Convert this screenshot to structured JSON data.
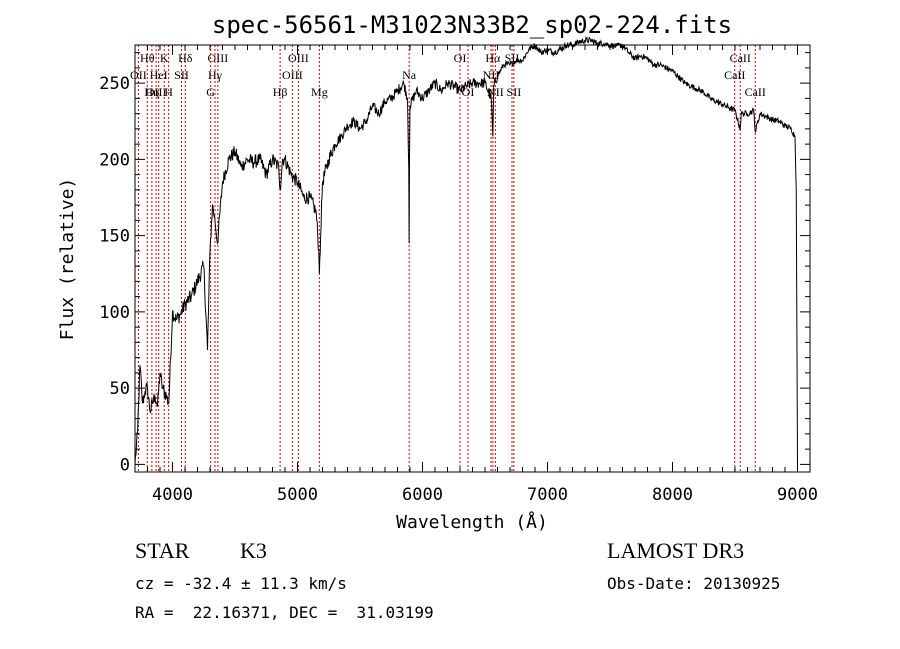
{
  "chart_data": {
    "type": "line",
    "title": "spec-56561-M31023N33B2_sp02-224.fits",
    "xlabel": "Wavelength (Å)",
    "ylabel": "Flux (relative)",
    "xlim": [
      3700,
      9100
    ],
    "ylim": [
      -5,
      275
    ],
    "xticks": [
      4000,
      5000,
      6000,
      7000,
      8000,
      9000
    ],
    "yticks": [
      0,
      50,
      100,
      150,
      200,
      250
    ],
    "grid": false,
    "series": [
      {
        "name": "flux",
        "x": [
          3700,
          3720,
          3740,
          3760,
          3780,
          3800,
          3820,
          3840,
          3860,
          3880,
          3900,
          3920,
          3950,
          3970,
          4000,
          4030,
          4060,
          4100,
          4150,
          4200,
          4250,
          4280,
          4300,
          4320,
          4340,
          4360,
          4400,
          4450,
          4500,
          4550,
          4600,
          4650,
          4700,
          4750,
          4800,
          4850,
          4861,
          4880,
          4900,
          4950,
          5000,
          5050,
          5100,
          5150,
          5170,
          5175,
          5185,
          5200,
          5250,
          5300,
          5350,
          5400,
          5450,
          5500,
          5550,
          5600,
          5650,
          5700,
          5750,
          5800,
          5850,
          5880,
          5890,
          5893,
          5896,
          5900,
          5950,
          6000,
          6050,
          6100,
          6150,
          6200,
          6250,
          6300,
          6350,
          6400,
          6450,
          6500,
          6550,
          6563,
          6570,
          6600,
          6650,
          6700,
          6750,
          6800,
          6850,
          6900,
          6950,
          7000,
          7050,
          7100,
          7150,
          7200,
          7250,
          7300,
          7350,
          7400,
          7450,
          7500,
          7550,
          7600,
          7650,
          7700,
          7750,
          7800,
          7850,
          7900,
          7950,
          8000,
          8050,
          8100,
          8150,
          8200,
          8250,
          8300,
          8350,
          8400,
          8450,
          8500,
          8542,
          8550,
          8600,
          8650,
          8662,
          8700,
          8750,
          8800,
          8850,
          8900,
          8950,
          8980,
          8990,
          9000
        ],
        "y": [
          0,
          20,
          65,
          40,
          48,
          50,
          35,
          40,
          45,
          38,
          60,
          50,
          45,
          40,
          100,
          95,
          98,
          105,
          110,
          120,
          130,
          75,
          140,
          170,
          160,
          145,
          185,
          200,
          205,
          195,
          200,
          198,
          200,
          190,
          200,
          195,
          180,
          200,
          200,
          190,
          185,
          175,
          175,
          165,
          140,
          125,
          150,
          185,
          200,
          210,
          215,
          222,
          225,
          220,
          225,
          235,
          230,
          238,
          240,
          245,
          250,
          240,
          195,
          145,
          200,
          235,
          245,
          240,
          245,
          250,
          245,
          250,
          248,
          245,
          248,
          250,
          250,
          250,
          240,
          215,
          248,
          255,
          262,
          262,
          265,
          265,
          272,
          275,
          270,
          272,
          270,
          272,
          275,
          275,
          277,
          278,
          278,
          276,
          276,
          275,
          274,
          275,
          270,
          266,
          268,
          266,
          262,
          262,
          260,
          258,
          254,
          250,
          248,
          246,
          244,
          240,
          238,
          236,
          234,
          232,
          220,
          230,
          230,
          232,
          218,
          230,
          228,
          226,
          225,
          222,
          220,
          215,
          180,
          0
        ]
      }
    ],
    "line_markers": [
      {
        "label": "Hθ",
        "x": 3798,
        "row": 1
      },
      {
        "label": "OII",
        "x": 3727,
        "row": 2
      },
      {
        "label": "OIII",
        "x": 3869,
        "row": 3
      },
      {
        "label": "K",
        "x": 3934,
        "row": 1
      },
      {
        "label": "HeI",
        "x": 3889,
        "row": 2
      },
      {
        "label": "Hη",
        "x": 3835,
        "row": 3
      },
      {
        "label": "Hδ",
        "x": 4102,
        "row": 1
      },
      {
        "label": "SII",
        "x": 4072,
        "row": 2
      },
      {
        "label": "H",
        "x": 3969,
        "row": 3
      },
      {
        "label": "OIII",
        "x": 4363,
        "row": 1
      },
      {
        "label": "Hγ",
        "x": 4340,
        "row": 2
      },
      {
        "label": "G",
        "x": 4305,
        "row": 3
      },
      {
        "label": "OIII",
        "x": 5007,
        "row": 1
      },
      {
        "label": "OIII",
        "x": 4959,
        "row": 2
      },
      {
        "label": "Hβ",
        "x": 4861,
        "row": 3
      },
      {
        "label": "Mg",
        "x": 5175,
        "row": 3
      },
      {
        "label": "Na",
        "x": 5893,
        "row": 2
      },
      {
        "label": "OI",
        "x": 6300,
        "row": 1
      },
      {
        "label": "OI",
        "x": 6364,
        "row": 3
      },
      {
        "label": "Hα",
        "x": 6563,
        "row": 1
      },
      {
        "label": "SII",
        "x": 6716,
        "row": 1
      },
      {
        "label": "NII",
        "x": 6548,
        "row": 2
      },
      {
        "label": "NII",
        "x": 6583,
        "row": 3
      },
      {
        "label": "SII",
        "x": 6731,
        "row": 3
      },
      {
        "label": "CaII",
        "x": 8542,
        "row": 1
      },
      {
        "label": "CaII",
        "x": 8498,
        "row": 2
      },
      {
        "label": "CaII",
        "x": 8662,
        "row": 3
      }
    ]
  },
  "info": {
    "object_class": "STAR",
    "subclass": "K3",
    "survey": "LAMOST DR3",
    "redshift": "cz = -32.4 ± 11.3 km/s",
    "obs_date": "Obs-Date: 20130925",
    "coords": "RA =  22.16371, DEC =  31.03199"
  },
  "colors": {
    "line": "#000000",
    "marker": "#cc0000",
    "axis": "#000000",
    "background": "#ffffff"
  }
}
